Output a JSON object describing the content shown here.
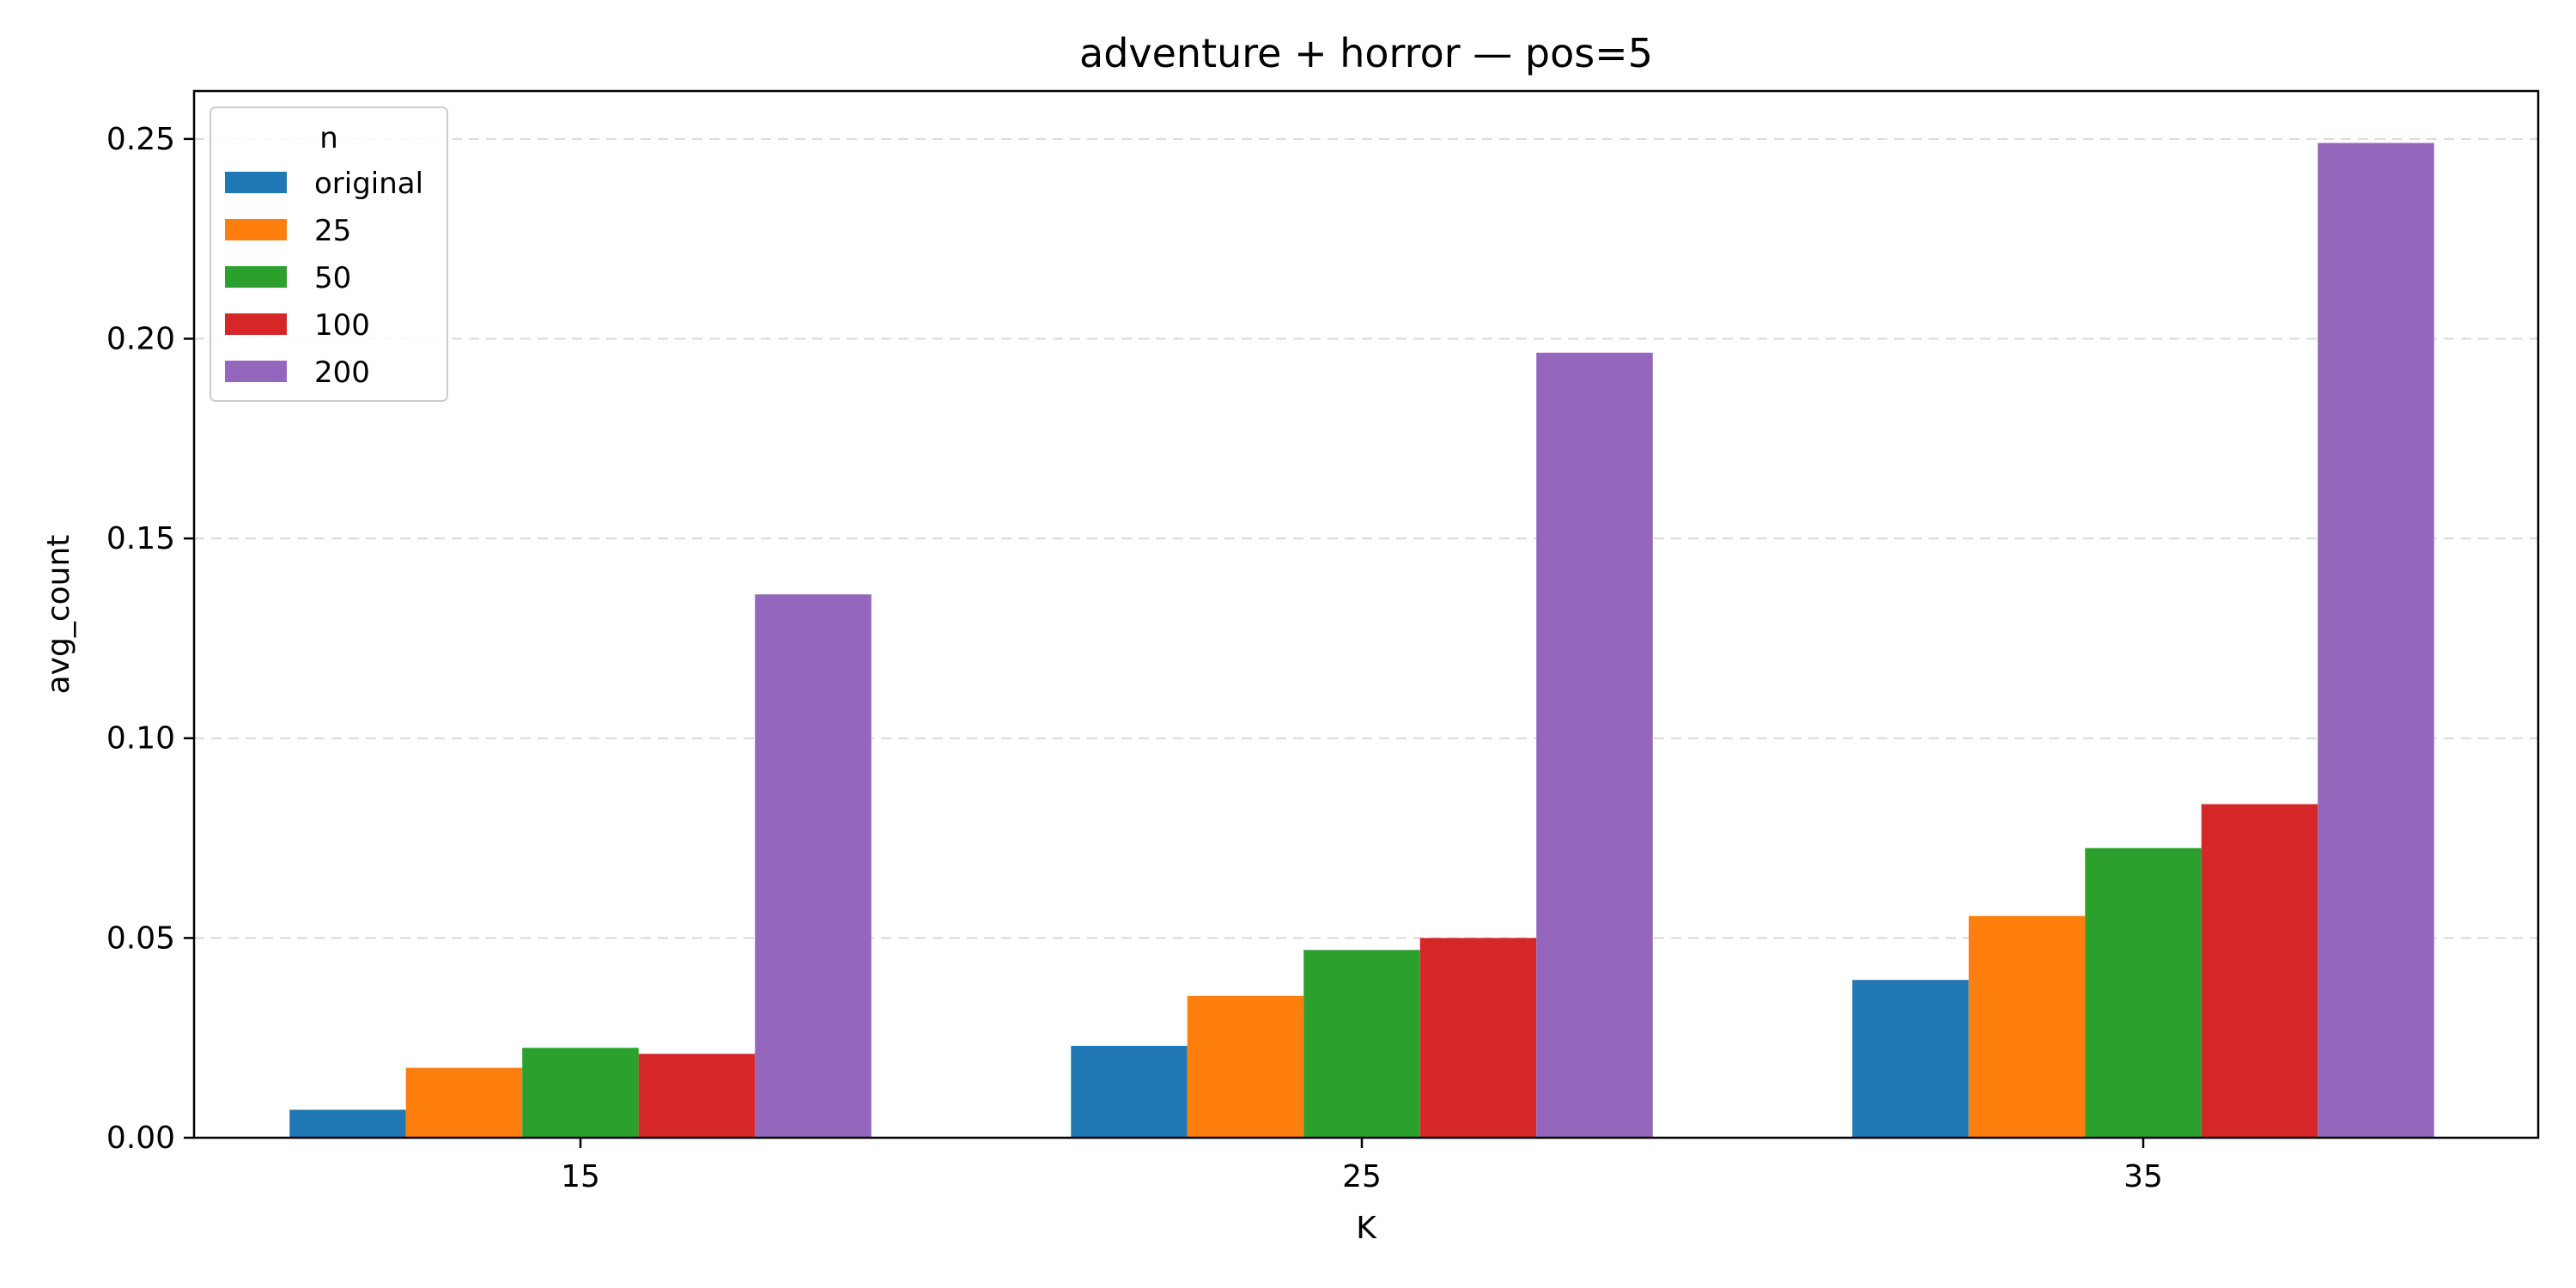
{
  "chart_data": {
    "type": "bar",
    "title": "adventure + horror — pos=5",
    "xlabel": "K",
    "ylabel": "avg_count",
    "categories": [
      "15",
      "25",
      "35"
    ],
    "ylim": [
      0,
      0.262
    ],
    "yticks": [
      0.0,
      0.05,
      0.1,
      0.15,
      0.2,
      0.25
    ],
    "ytick_labels": [
      "0.00",
      "0.05",
      "0.10",
      "0.15",
      "0.20",
      "0.25"
    ],
    "grid": "horizontal-dashed",
    "legend": {
      "title": "n",
      "placement": "upper-left"
    },
    "series": [
      {
        "name": "original",
        "color": "#1f77b4",
        "values": [
          0.007,
          0.023,
          0.0395
        ]
      },
      {
        "name": "25",
        "color": "#ff7f0e",
        "values": [
          0.0175,
          0.0355,
          0.0555
        ]
      },
      {
        "name": "50",
        "color": "#2ca02c",
        "values": [
          0.0225,
          0.047,
          0.0725
        ]
      },
      {
        "name": "100",
        "color": "#d62728",
        "values": [
          0.021,
          0.05,
          0.0835
        ]
      },
      {
        "name": "200",
        "color": "#9467bd",
        "values": [
          0.136,
          0.1965,
          0.249
        ]
      }
    ]
  }
}
